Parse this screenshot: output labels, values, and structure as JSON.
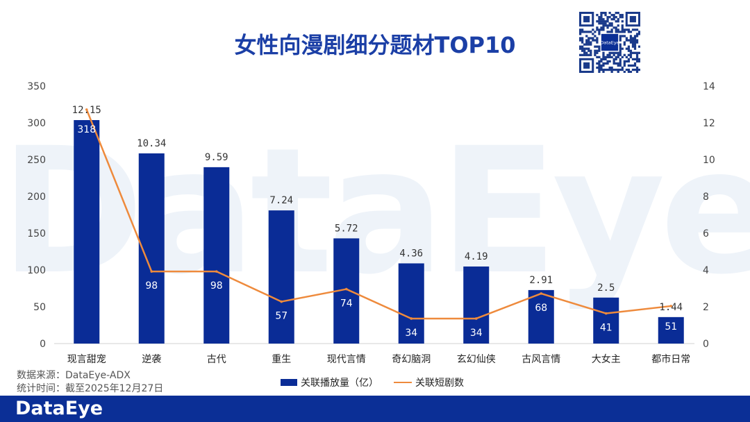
{
  "header": {
    "title": "女性向漫剧细分题材TOP10"
  },
  "watermark": "DataEye",
  "brand": "DataEye",
  "source": {
    "line1": "数据来源：DataEye-ADX",
    "line2": "统计时间：截至2025年12月27日"
  },
  "legend": {
    "bar": "关联播放量（亿）",
    "line": "关联短剧数"
  },
  "colors": {
    "bar": "#0a2c96",
    "line": "#ee8a3c",
    "footer": "#0b2f96",
    "title": "#1b3fa6"
  },
  "chart_data": {
    "type": "bar",
    "categories": [
      "现言甜宠",
      "逆袭",
      "古代",
      "重生",
      "现代言情",
      "奇幻脑洞",
      "玄幻仙侠",
      "古风言情",
      "大女主",
      "都市日常"
    ],
    "series": [
      {
        "name": "关联播放量（亿）",
        "type": "bar",
        "axis": "right",
        "values": [
          12.15,
          10.34,
          9.59,
          7.24,
          5.72,
          4.36,
          4.19,
          2.91,
          2.5,
          1.44
        ],
        "labels": [
          "12.15",
          "10.34",
          "9.59",
          "7.24",
          "5.72",
          "4.36",
          "4.19",
          "2.91",
          "2.5",
          "1.44"
        ]
      },
      {
        "name": "关联短剧数",
        "type": "line",
        "axis": "left",
        "values": [
          318,
          98,
          98,
          57,
          74,
          34,
          34,
          68,
          41,
          51
        ],
        "labels": [
          "318",
          "98",
          "98",
          "57",
          "74",
          "34",
          "34",
          "68",
          "41",
          "51"
        ]
      }
    ],
    "y_left": {
      "min": 0,
      "max": 350,
      "ticks": [
        "0",
        "50",
        "100",
        "150",
        "200",
        "250",
        "300",
        "350"
      ]
    },
    "y_right": {
      "min": 0,
      "max": 14,
      "ticks": [
        "0",
        "2",
        "4",
        "6",
        "8",
        "10",
        "12",
        "14"
      ]
    },
    "grid": false,
    "legend_position": "bottom"
  }
}
